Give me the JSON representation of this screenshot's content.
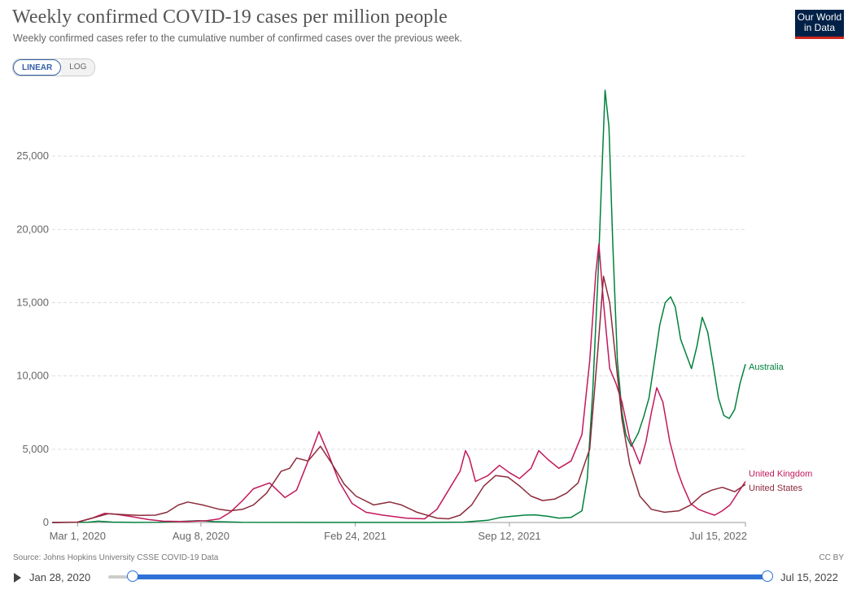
{
  "header": {
    "title": "Weekly confirmed COVID-19 cases per million people",
    "subtitle": "Weekly confirmed cases refer to the cumulative number of confirmed cases over the previous week.",
    "logo_line1": "Our World",
    "logo_line2": "in Data"
  },
  "controls": {
    "linear_label": "LINEAR",
    "log_label": "LOG",
    "selected": "LINEAR"
  },
  "footer": {
    "source": "Source: Johns Hopkins University CSSE COVID-19 Data",
    "license": "CC BY"
  },
  "timeline": {
    "start_label": "Jan 28, 2020",
    "end_label": "Jul 15, 2022"
  },
  "chart_data": {
    "type": "line",
    "x_unit": "date",
    "xlim": [
      "2020-01-28",
      "2022-07-15"
    ],
    "ylim": [
      0,
      30000
    ],
    "y_ticks": [
      0,
      5000,
      10000,
      15000,
      20000,
      25000
    ],
    "y_tick_labels": [
      "0",
      "5,000",
      "10,000",
      "15,000",
      "20,000",
      "25,000"
    ],
    "x_ticks": [
      "2020-03-01",
      "2020-08-08",
      "2021-02-24",
      "2021-09-12",
      "2022-07-15"
    ],
    "x_tick_labels": [
      "Mar 1, 2020",
      "Aug 8, 2020",
      "Feb 24, 2021",
      "Sep 12, 2021",
      "Jul 15, 2022"
    ],
    "grid": "horizontal-dashed",
    "legend": "inline-right",
    "series": [
      {
        "name": "Australia",
        "color": "#00813b",
        "points": [
          [
            "2020-01-28",
            0
          ],
          [
            "2020-03-15",
            20
          ],
          [
            "2020-03-28",
            90
          ],
          [
            "2020-04-15",
            30
          ],
          [
            "2020-05-15",
            5
          ],
          [
            "2020-06-15",
            10
          ],
          [
            "2020-07-15",
            80
          ],
          [
            "2020-08-05",
            120
          ],
          [
            "2020-08-25",
            60
          ],
          [
            "2020-09-30",
            10
          ],
          [
            "2020-12-31",
            5
          ],
          [
            "2021-06-01",
            5
          ],
          [
            "2021-07-15",
            30
          ],
          [
            "2021-08-15",
            150
          ],
          [
            "2021-09-01",
            350
          ],
          [
            "2021-09-15",
            420
          ],
          [
            "2021-10-01",
            500
          ],
          [
            "2021-10-15",
            520
          ],
          [
            "2021-11-01",
            420
          ],
          [
            "2021-11-15",
            300
          ],
          [
            "2021-12-01",
            350
          ],
          [
            "2021-12-15",
            800
          ],
          [
            "2021-12-22",
            3000
          ],
          [
            "2021-12-29",
            9000
          ],
          [
            "2022-01-05",
            17000
          ],
          [
            "2022-01-10",
            24000
          ],
          [
            "2022-01-14",
            29500
          ],
          [
            "2022-01-19",
            27000
          ],
          [
            "2022-01-24",
            19000
          ],
          [
            "2022-01-30",
            11000
          ],
          [
            "2022-02-05",
            7500
          ],
          [
            "2022-02-10",
            6000
          ],
          [
            "2022-02-17",
            5200
          ],
          [
            "2022-02-26",
            6100
          ],
          [
            "2022-03-05",
            7200
          ],
          [
            "2022-03-12",
            8500
          ],
          [
            "2022-03-19",
            11000
          ],
          [
            "2022-03-26",
            13500
          ],
          [
            "2022-04-02",
            15000
          ],
          [
            "2022-04-09",
            15400
          ],
          [
            "2022-04-15",
            14700
          ],
          [
            "2022-04-22",
            12500
          ],
          [
            "2022-04-29",
            11500
          ],
          [
            "2022-05-06",
            10500
          ],
          [
            "2022-05-13",
            12000
          ],
          [
            "2022-05-20",
            14000
          ],
          [
            "2022-05-27",
            13000
          ],
          [
            "2022-06-03",
            10800
          ],
          [
            "2022-06-10",
            8500
          ],
          [
            "2022-06-17",
            7300
          ],
          [
            "2022-06-24",
            7100
          ],
          [
            "2022-07-01",
            7700
          ],
          [
            "2022-07-08",
            9500
          ],
          [
            "2022-07-15",
            10800
          ]
        ]
      },
      {
        "name": "United Kingdom",
        "color": "#c2185b",
        "points": [
          [
            "2020-01-28",
            0
          ],
          [
            "2020-03-01",
            30
          ],
          [
            "2020-03-20",
            300
          ],
          [
            "2020-04-05",
            620
          ],
          [
            "2020-04-20",
            560
          ],
          [
            "2020-05-10",
            400
          ],
          [
            "2020-06-01",
            200
          ],
          [
            "2020-06-20",
            90
          ],
          [
            "2020-07-20",
            60
          ],
          [
            "2020-08-15",
            120
          ],
          [
            "2020-09-01",
            250
          ],
          [
            "2020-09-15",
            700
          ],
          [
            "2020-10-01",
            1500
          ],
          [
            "2020-10-15",
            2300
          ],
          [
            "2020-11-05",
            2700
          ],
          [
            "2020-11-25",
            1700
          ],
          [
            "2020-12-10",
            2200
          ],
          [
            "2020-12-25",
            4200
          ],
          [
            "2021-01-08",
            6200
          ],
          [
            "2021-01-20",
            4700
          ],
          [
            "2021-02-03",
            2800
          ],
          [
            "2021-02-20",
            1300
          ],
          [
            "2021-03-10",
            700
          ],
          [
            "2021-04-01",
            500
          ],
          [
            "2021-05-01",
            300
          ],
          [
            "2021-05-25",
            250
          ],
          [
            "2021-06-10",
            900
          ],
          [
            "2021-06-25",
            2200
          ],
          [
            "2021-07-10",
            3500
          ],
          [
            "2021-07-17",
            4900
          ],
          [
            "2021-07-22",
            4400
          ],
          [
            "2021-07-30",
            2800
          ],
          [
            "2021-08-15",
            3200
          ],
          [
            "2021-08-30",
            3900
          ],
          [
            "2021-09-12",
            3400
          ],
          [
            "2021-09-25",
            3000
          ],
          [
            "2021-10-10",
            3700
          ],
          [
            "2021-10-20",
            4900
          ],
          [
            "2021-11-01",
            4300
          ],
          [
            "2021-11-15",
            3700
          ],
          [
            "2021-12-01",
            4200
          ],
          [
            "2021-12-15",
            6000
          ],
          [
            "2021-12-25",
            11000
          ],
          [
            "2022-01-02",
            17000
          ],
          [
            "2022-01-06",
            19000
          ],
          [
            "2022-01-12",
            15000
          ],
          [
            "2022-01-20",
            10500
          ],
          [
            "2022-01-28",
            9500
          ],
          [
            "2022-02-05",
            8200
          ],
          [
            "2022-02-15",
            5700
          ],
          [
            "2022-02-28",
            4000
          ],
          [
            "2022-03-08",
            5500
          ],
          [
            "2022-03-15",
            7500
          ],
          [
            "2022-03-22",
            9200
          ],
          [
            "2022-03-30",
            8200
          ],
          [
            "2022-04-08",
            5500
          ],
          [
            "2022-04-18",
            3500
          ],
          [
            "2022-04-25",
            2500
          ],
          [
            "2022-05-05",
            1300
          ],
          [
            "2022-05-15",
            900
          ],
          [
            "2022-05-25",
            700
          ],
          [
            "2022-06-05",
            500
          ],
          [
            "2022-06-15",
            800
          ],
          [
            "2022-06-25",
            1200
          ],
          [
            "2022-07-05",
            2000
          ],
          [
            "2022-07-15",
            2800
          ]
        ]
      },
      {
        "name": "United States",
        "color": "#8c2b3b",
        "points": [
          [
            "2020-01-28",
            0
          ],
          [
            "2020-03-01",
            20
          ],
          [
            "2020-03-20",
            300
          ],
          [
            "2020-04-10",
            600
          ],
          [
            "2020-05-01",
            530
          ],
          [
            "2020-05-20",
            480
          ],
          [
            "2020-06-10",
            500
          ],
          [
            "2020-06-25",
            700
          ],
          [
            "2020-07-10",
            1200
          ],
          [
            "2020-07-22",
            1400
          ],
          [
            "2020-08-10",
            1200
          ],
          [
            "2020-09-01",
            900
          ],
          [
            "2020-09-15",
            800
          ],
          [
            "2020-10-01",
            900
          ],
          [
            "2020-10-15",
            1200
          ],
          [
            "2020-11-01",
            2000
          ],
          [
            "2020-11-20",
            3500
          ],
          [
            "2020-12-01",
            3700
          ],
          [
            "2020-12-10",
            4400
          ],
          [
            "2020-12-25",
            4200
          ],
          [
            "2021-01-10",
            5200
          ],
          [
            "2021-01-25",
            4000
          ],
          [
            "2021-02-10",
            2600
          ],
          [
            "2021-02-25",
            1800
          ],
          [
            "2021-03-20",
            1200
          ],
          [
            "2021-04-10",
            1400
          ],
          [
            "2021-04-25",
            1200
          ],
          [
            "2021-05-15",
            700
          ],
          [
            "2021-06-10",
            300
          ],
          [
            "2021-06-25",
            250
          ],
          [
            "2021-07-10",
            500
          ],
          [
            "2021-07-25",
            1200
          ],
          [
            "2021-08-10",
            2500
          ],
          [
            "2021-08-25",
            3200
          ],
          [
            "2021-09-10",
            3100
          ],
          [
            "2021-09-25",
            2500
          ],
          [
            "2021-10-10",
            1800
          ],
          [
            "2021-10-25",
            1500
          ],
          [
            "2021-11-10",
            1600
          ],
          [
            "2021-11-25",
            2000
          ],
          [
            "2021-12-10",
            2700
          ],
          [
            "2021-12-25",
            5000
          ],
          [
            "2022-01-05",
            12000
          ],
          [
            "2022-01-12",
            16800
          ],
          [
            "2022-01-20",
            15000
          ],
          [
            "2022-01-28",
            11000
          ],
          [
            "2022-02-05",
            7000
          ],
          [
            "2022-02-15",
            4000
          ],
          [
            "2022-02-28",
            1800
          ],
          [
            "2022-03-15",
            900
          ],
          [
            "2022-04-01",
            700
          ],
          [
            "2022-04-20",
            800
          ],
          [
            "2022-05-05",
            1200
          ],
          [
            "2022-05-20",
            1900
          ],
          [
            "2022-06-01",
            2200
          ],
          [
            "2022-06-15",
            2400
          ],
          [
            "2022-07-01",
            2100
          ],
          [
            "2022-07-15",
            2600
          ]
        ]
      }
    ]
  }
}
